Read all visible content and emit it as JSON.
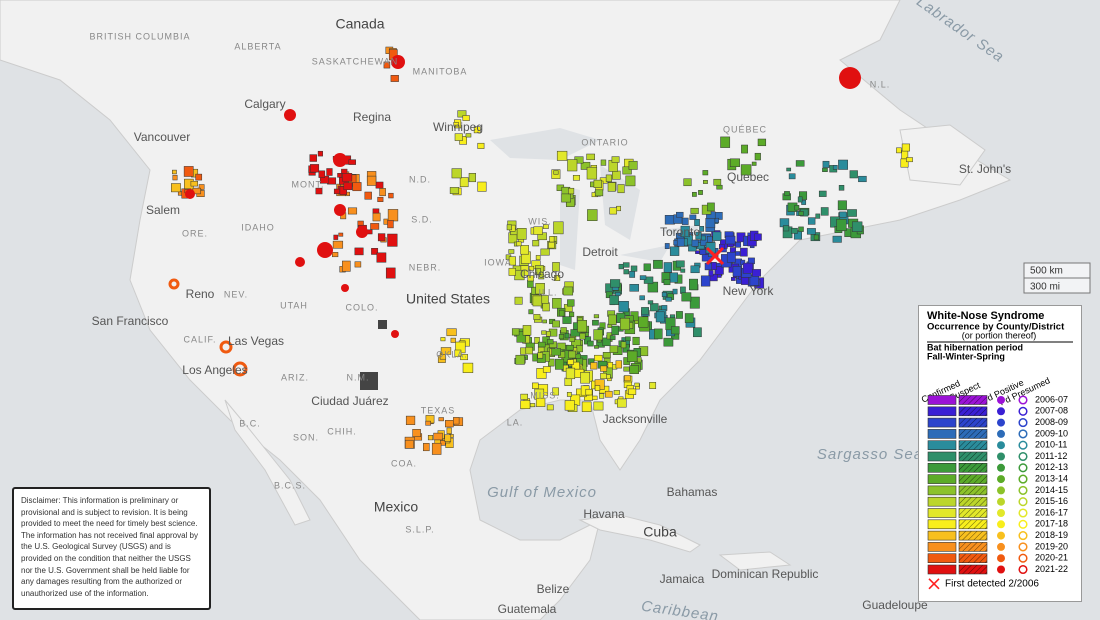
{
  "map_labels": [
    "Canada",
    "BRITISH COLUMBIA",
    "ALBERTA",
    "SASKATCHEWAN",
    "MANITOBA",
    "ONTARIO",
    "QUÉBEC",
    "N.L.",
    "Calgary",
    "Vancouver",
    "Regina",
    "Winnipeg",
    "Salem",
    "ORE.",
    "IDAHO",
    "MONT.",
    "N.D.",
    "S.D.",
    "WIS.",
    "NEBR.",
    "IOWA",
    "Chicago",
    "Detroit",
    "Toronto",
    "Quebec",
    "St. John's",
    "New York",
    "UTAH",
    "NEV.",
    "Reno",
    "San Francisco",
    "COLO.",
    "United States",
    "ILL.",
    "CALIF.",
    "Las Vegas",
    "Los Angeles",
    "ARIZ.",
    "N.M.",
    "OKLA.",
    "Ciudad Juárez",
    "TEXAS",
    "LA.",
    "MISS.",
    "Jacksonville",
    "Mexico",
    "SON.",
    "CHIH.",
    "COA.",
    "B.C.",
    "B.C.S.",
    "S.L.P.",
    "Bahamas",
    "Havana",
    "Cuba",
    "Jamaica",
    "Dominican Republic",
    "Belize",
    "Guatemala",
    "Guadeloupe"
  ],
  "sea_labels": [
    "Labrador Sea",
    "Sargasso Sea",
    "Gulf of Mexico",
    "Caribbean"
  ],
  "scale": [
    "500 km",
    "300 mi"
  ],
  "legend": {
    "title": "White-Nose Syndrome",
    "subtitle": "Occurrence by County/District",
    "subtitle_note": "(or portion thereof)",
    "period_title": "Bat hibernation period",
    "period_subtitle": "Fall-Winter-Spring",
    "columns": [
      "Confirmed",
      "Suspect",
      "Pd Positive",
      "Pd Presumed"
    ],
    "rows": [
      {
        "label": "2006-07",
        "color": "#9b12d6"
      },
      {
        "label": "2007-08",
        "color": "#3a1fd4"
      },
      {
        "label": "2008-09",
        "color": "#2c44cc"
      },
      {
        "label": "2009-10",
        "color": "#2d6cb8"
      },
      {
        "label": "2010-11",
        "color": "#2a8c9c"
      },
      {
        "label": "2011-12",
        "color": "#2f8f6a"
      },
      {
        "label": "2012-13",
        "color": "#3c9a3a"
      },
      {
        "label": "2013-14",
        "color": "#5cab28"
      },
      {
        "label": "2014-15",
        "color": "#8cc22a"
      },
      {
        "label": "2015-16",
        "color": "#bcd62a"
      },
      {
        "label": "2016-17",
        "color": "#e2e82a"
      },
      {
        "label": "2017-18",
        "color": "#f8ee1c"
      },
      {
        "label": "2018-19",
        "color": "#f8c01e"
      },
      {
        "label": "2019-20",
        "color": "#f8901e"
      },
      {
        "label": "2020-21",
        "color": "#f05a10"
      },
      {
        "label": "2021-22",
        "color": "#e01010"
      }
    ],
    "first_detected": "First detected 2/2006"
  },
  "disclaimer": "Disclaimer: This information is preliminary or provisional and is subject to revision. It is being provided to meet the need for timely best science. The information has not received final approval by the U.S. Geological Survey (USGS) and is provided on the condition that neither the USGS nor the U.S. Government shall be held liable for any damages resulting from the authorized or unauthorized use of the information."
}
